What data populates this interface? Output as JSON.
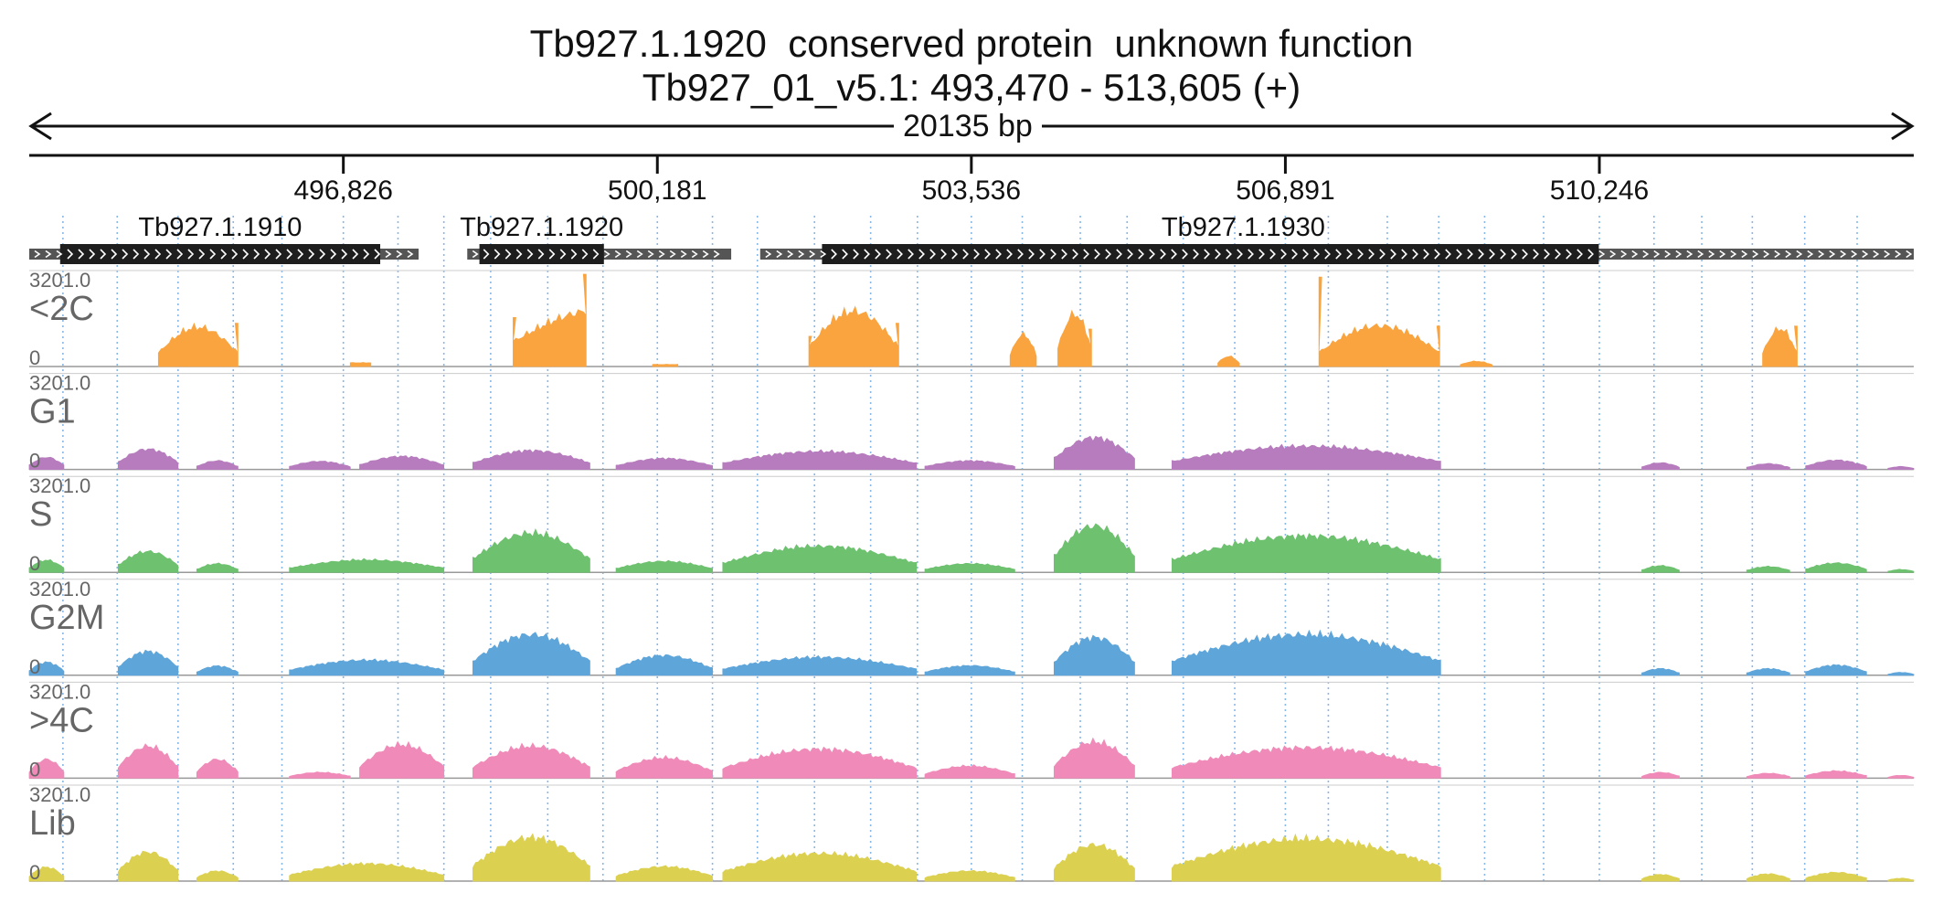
{
  "header": {
    "title": "Tb927.1.1920  conserved protein  unknown function",
    "location": "Tb927_01_v5.1: 493,470 - 513,605 (+)",
    "span": "20135 bp"
  },
  "chart_data": {
    "type": "area",
    "title": "Tb927.1.1920  conserved protein  unknown function",
    "subtitle": "Tb927_01_v5.1: 493,470 - 513,605 (+)",
    "x_axis": {
      "range": [
        493470,
        513605
      ],
      "span_label": "20135 bp",
      "tick_values": [
        496826,
        500181,
        503536,
        506891,
        510246
      ],
      "tick_labels": [
        "496,826",
        "500,181",
        "503,536",
        "506,891",
        "510,246"
      ]
    },
    "gridline_positions": [
      493830,
      494410,
      495060,
      495650,
      496170,
      496826,
      497410,
      497900,
      498400,
      499010,
      499600,
      500181,
      500770,
      501250,
      501860,
      502460,
      502960,
      503536,
      504080,
      504700,
      505200,
      505800,
      506350,
      506891,
      507350,
      507980,
      508530,
      509020,
      509650,
      510246,
      510830,
      511340,
      511880,
      512440,
      513000
    ],
    "genes": [
      {
        "name": "Tb927.1.1910",
        "start": 493470,
        "end": 497630,
        "cds": [
          493800,
          497220
        ],
        "strand": "+"
      },
      {
        "name": "Tb927.1.1920",
        "start": 498150,
        "end": 500970,
        "cds": [
          498280,
          499610
        ],
        "strand": "+"
      },
      {
        "name": "Tb927.1.1930",
        "start": 501280,
        "end": 513605,
        "cds": [
          501940,
          510240
        ],
        "strand": "+"
      }
    ],
    "tracks": [
      {
        "name": "<2C",
        "max_label": "3201.0",
        "min_label": "0",
        "ylim": [
          0,
          3201.0
        ],
        "color": "#f9a43f",
        "segments": [
          {
            "x": [
              494850,
              495700
            ],
            "value": 1350,
            "shape": "bump",
            "end_spike": 1500
          },
          {
            "x": [
              496900,
              497120
            ],
            "value": 130,
            "shape": "flat"
          },
          {
            "x": [
              498640,
              499420
            ],
            "value": 2100,
            "shape": "ramp",
            "start_spike": 1700,
            "end_spike": 3200
          },
          {
            "x": [
              500130,
              500400
            ],
            "value": 70,
            "shape": "flat"
          },
          {
            "x": [
              501800,
              502760
            ],
            "value": 1900,
            "shape": "bump",
            "start_spike": 1050,
            "end_spike": 1500
          },
          {
            "x": [
              503950,
              504230
            ],
            "value": 1100,
            "shape": "bump"
          },
          {
            "x": [
              504460,
              504820
            ],
            "value": 1800,
            "shape": "bump",
            "end_spike": 1300
          },
          {
            "x": [
              506170,
              506400
            ],
            "value": 350,
            "shape": "bump"
          },
          {
            "x": [
              507250,
              508540
            ],
            "value": 1400,
            "shape": "bump",
            "start_spike": 3100,
            "end_spike": 1400
          },
          {
            "x": [
              508760,
              509100
            ],
            "value": 180,
            "shape": "bump"
          },
          {
            "x": [
              511990,
              512360
            ],
            "value": 1300,
            "shape": "bump",
            "end_spike": 1400
          }
        ]
      },
      {
        "name": "G1",
        "max_label": "3201.0",
        "min_label": "0",
        "ylim": [
          0,
          3201.0
        ],
        "color": "#b67cbd",
        "segments": [
          {
            "x": [
              493470,
              493840
            ],
            "value": 420,
            "shape": "bump"
          },
          {
            "x": [
              494420,
              495060
            ],
            "value": 700,
            "shape": "bump"
          },
          {
            "x": [
              495260,
              495700
            ],
            "value": 300,
            "shape": "bump"
          },
          {
            "x": [
              496250,
              496900
            ],
            "value": 280,
            "shape": "bump"
          },
          {
            "x": [
              497000,
              497900
            ],
            "value": 450,
            "shape": "bump"
          },
          {
            "x": [
              498210,
              499460
            ],
            "value": 650,
            "shape": "bump"
          },
          {
            "x": [
              499740,
              500770
            ],
            "value": 380,
            "shape": "bump"
          },
          {
            "x": [
              500880,
              502950
            ],
            "value": 620,
            "shape": "bump"
          },
          {
            "x": [
              503040,
              504000
            ],
            "value": 300,
            "shape": "bump"
          },
          {
            "x": [
              504420,
              505280
            ],
            "value": 1100,
            "shape": "bump"
          },
          {
            "x": [
              505680,
              508550
            ],
            "value": 800,
            "shape": "bump"
          },
          {
            "x": [
              510700,
              511100
            ],
            "value": 230,
            "shape": "bump"
          },
          {
            "x": [
              511820,
              512280
            ],
            "value": 200,
            "shape": "bump"
          },
          {
            "x": [
              512450,
              513100
            ],
            "value": 320,
            "shape": "bump"
          },
          {
            "x": [
              513330,
              513605
            ],
            "value": 100,
            "shape": "bump"
          }
        ]
      },
      {
        "name": "S",
        "max_label": "3201.0",
        "min_label": "0",
        "ylim": [
          0,
          3201.0
        ],
        "color": "#6dc16f",
        "segments": [
          {
            "x": [
              493470,
              493840
            ],
            "value": 420,
            "shape": "bump"
          },
          {
            "x": [
              494420,
              495060
            ],
            "value": 720,
            "shape": "bump"
          },
          {
            "x": [
              495260,
              495700
            ],
            "value": 300,
            "shape": "bump"
          },
          {
            "x": [
              496250,
              497900
            ],
            "value": 430,
            "shape": "bump"
          },
          {
            "x": [
              498210,
              499460
            ],
            "value": 1350,
            "shape": "bump"
          },
          {
            "x": [
              499740,
              500770
            ],
            "value": 380,
            "shape": "bump"
          },
          {
            "x": [
              500880,
              502950
            ],
            "value": 900,
            "shape": "bump"
          },
          {
            "x": [
              503040,
              504000
            ],
            "value": 300,
            "shape": "bump"
          },
          {
            "x": [
              504420,
              505280
            ],
            "value": 1600,
            "shape": "bump"
          },
          {
            "x": [
              505680,
              508550
            ],
            "value": 1250,
            "shape": "bump"
          },
          {
            "x": [
              510700,
              511100
            ],
            "value": 230,
            "shape": "bump"
          },
          {
            "x": [
              511820,
              512280
            ],
            "value": 200,
            "shape": "bump"
          },
          {
            "x": [
              512450,
              513100
            ],
            "value": 320,
            "shape": "bump"
          },
          {
            "x": [
              513330,
              513605
            ],
            "value": 100,
            "shape": "bump"
          }
        ]
      },
      {
        "name": "G2M",
        "max_label": "3201.0",
        "min_label": "0",
        "ylim": [
          0,
          3201.0
        ],
        "color": "#5ea5da",
        "segments": [
          {
            "x": [
              493470,
              493840
            ],
            "value": 450,
            "shape": "bump"
          },
          {
            "x": [
              494420,
              495060
            ],
            "value": 820,
            "shape": "bump"
          },
          {
            "x": [
              495260,
              495700
            ],
            "value": 320,
            "shape": "bump"
          },
          {
            "x": [
              496250,
              497900
            ],
            "value": 520,
            "shape": "bump"
          },
          {
            "x": [
              498210,
              499460
            ],
            "value": 1400,
            "shape": "bump"
          },
          {
            "x": [
              499740,
              500770
            ],
            "value": 680,
            "shape": "bump"
          },
          {
            "x": [
              500880,
              502950
            ],
            "value": 620,
            "shape": "bump"
          },
          {
            "x": [
              503040,
              504000
            ],
            "value": 330,
            "shape": "bump"
          },
          {
            "x": [
              504420,
              505280
            ],
            "value": 1300,
            "shape": "bump"
          },
          {
            "x": [
              505680,
              508550
            ],
            "value": 1400,
            "shape": "bump"
          },
          {
            "x": [
              510700,
              511100
            ],
            "value": 230,
            "shape": "bump"
          },
          {
            "x": [
              511820,
              512280
            ],
            "value": 230,
            "shape": "bump"
          },
          {
            "x": [
              512450,
              513100
            ],
            "value": 350,
            "shape": "bump"
          },
          {
            "x": [
              513330,
              513605
            ],
            "value": 100,
            "shape": "bump"
          }
        ]
      },
      {
        "name": ">4C",
        "max_label": "3201.0",
        "min_label": "0",
        "ylim": [
          0,
          3201.0
        ],
        "color": "#f08ab8",
        "segments": [
          {
            "x": [
              493470,
              493840
            ],
            "value": 650,
            "shape": "bump"
          },
          {
            "x": [
              494420,
              495060
            ],
            "value": 1100,
            "shape": "bump"
          },
          {
            "x": [
              495260,
              495700
            ],
            "value": 650,
            "shape": "bump"
          },
          {
            "x": [
              496250,
              496900
            ],
            "value": 200,
            "shape": "bump"
          },
          {
            "x": [
              497000,
              497900
            ],
            "value": 1150,
            "shape": "bump"
          },
          {
            "x": [
              498210,
              499460
            ],
            "value": 1100,
            "shape": "bump"
          },
          {
            "x": [
              499740,
              500770
            ],
            "value": 700,
            "shape": "bump"
          },
          {
            "x": [
              500880,
              502950
            ],
            "value": 1000,
            "shape": "bump"
          },
          {
            "x": [
              503040,
              504000
            ],
            "value": 420,
            "shape": "bump"
          },
          {
            "x": [
              504420,
              505280
            ],
            "value": 1250,
            "shape": "bump"
          },
          {
            "x": [
              505680,
              508550
            ],
            "value": 1050,
            "shape": "bump"
          },
          {
            "x": [
              510700,
              511100
            ],
            "value": 200,
            "shape": "bump"
          },
          {
            "x": [
              511820,
              512280
            ],
            "value": 170,
            "shape": "bump"
          },
          {
            "x": [
              512450,
              513100
            ],
            "value": 250,
            "shape": "bump"
          },
          {
            "x": [
              513330,
              513605
            ],
            "value": 100,
            "shape": "bump"
          }
        ]
      },
      {
        "name": "Lib",
        "max_label": "3201.0",
        "min_label": "0",
        "ylim": [
          0,
          3201.0
        ],
        "color": "#dcd050",
        "segments": [
          {
            "x": [
              493470,
              493840
            ],
            "value": 480,
            "shape": "bump"
          },
          {
            "x": [
              494420,
              495060
            ],
            "value": 1000,
            "shape": "bump"
          },
          {
            "x": [
              495260,
              495700
            ],
            "value": 350,
            "shape": "bump"
          },
          {
            "x": [
              496250,
              497900
            ],
            "value": 600,
            "shape": "bump"
          },
          {
            "x": [
              498210,
              499460
            ],
            "value": 1500,
            "shape": "bump"
          },
          {
            "x": [
              499740,
              500770
            ],
            "value": 500,
            "shape": "bump"
          },
          {
            "x": [
              500880,
              502950
            ],
            "value": 950,
            "shape": "bump"
          },
          {
            "x": [
              503040,
              504000
            ],
            "value": 350,
            "shape": "bump"
          },
          {
            "x": [
              504420,
              505280
            ],
            "value": 1250,
            "shape": "bump"
          },
          {
            "x": [
              505680,
              508550
            ],
            "value": 1450,
            "shape": "bump"
          },
          {
            "x": [
              510700,
              511100
            ],
            "value": 230,
            "shape": "bump"
          },
          {
            "x": [
              511820,
              512280
            ],
            "value": 250,
            "shape": "bump"
          },
          {
            "x": [
              512450,
              513100
            ],
            "value": 300,
            "shape": "bump"
          },
          {
            "x": [
              513330,
              513605
            ],
            "value": 100,
            "shape": "bump"
          }
        ]
      }
    ]
  }
}
